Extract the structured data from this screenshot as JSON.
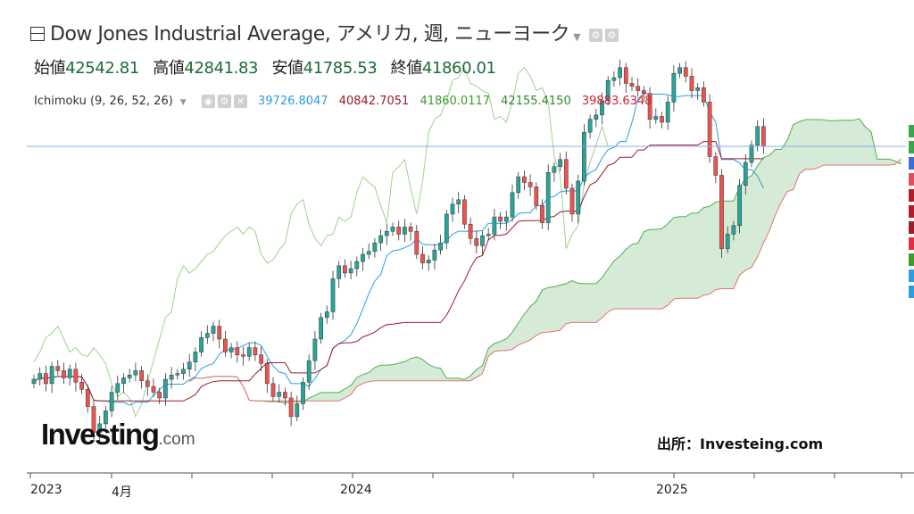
{
  "header": {
    "title": "Dow Jones Industrial Average, アメリカ, 週, ニューヨーク",
    "ohlc": [
      {
        "label": "始値",
        "value": "42542.81"
      },
      {
        "label": "高値",
        "value": "42841.83"
      },
      {
        "label": "安値",
        "value": "41785.53"
      },
      {
        "label": "終値",
        "value": "41860.01"
      }
    ]
  },
  "indicator": {
    "name": "Ichimoku (9, 26, 52, 26)",
    "values": [
      {
        "text": "39726.8047",
        "color": "#2b9de0"
      },
      {
        "text": "40842.7051",
        "color": "#9b1c2a"
      },
      {
        "text": "41860.0117",
        "color": "#3f9c2c"
      },
      {
        "text": "42155.4150",
        "color": "#2e8b2e"
      },
      {
        "text": "39883.6348",
        "color": "#d2222d"
      }
    ]
  },
  "logo": {
    "main": "Investing",
    "suffix": ".com"
  },
  "source_note": "出所：Investeing.com",
  "x_ticks": [
    {
      "label": "2023",
      "week": 0
    },
    {
      "label": "4月",
      "week": 13
    },
    {
      "label": "2024",
      "week": 52
    },
    {
      "label": "2025",
      "week": 104
    }
  ],
  "colors": {
    "up": "#26a69a",
    "down": "#ef5350",
    "tenkan": "#2b9de0",
    "kijun": "#9b1c2a",
    "chikou": "#3f9c2c",
    "span_a": "#4caf50",
    "span_b": "#e57373",
    "cloud_bull": "#cfe8cf",
    "cloud_bear": "#f8d0d0",
    "last_price_line": "#8aa9e8"
  },
  "chart_data": {
    "type": "candlestick",
    "title": "Dow Jones Industrial Average",
    "period": "weekly",
    "ylim": [
      30800,
      45400
    ],
    "price_closes": [
      33750,
      33950,
      33600,
      34200,
      34050,
      33800,
      34100,
      33650,
      33400,
      32800,
      31900,
      32200,
      32650,
      33300,
      33600,
      33800,
      33900,
      34050,
      33700,
      33500,
      33300,
      33100,
      33750,
      33900,
      33950,
      34100,
      34350,
      34700,
      35200,
      35350,
      35600,
      35150,
      34700,
      34850,
      34600,
      34550,
      34850,
      34600,
      34300,
      33600,
      33150,
      33300,
      33100,
      32450,
      32900,
      33650,
      34400,
      35150,
      35900,
      36100,
      37250,
      37700,
      37450,
      37600,
      37850,
      38100,
      38200,
      38500,
      38750,
      38900,
      39050,
      38800,
      39050,
      38900,
      38100,
      37800,
      37900,
      38250,
      38500,
      39500,
      39850,
      40000,
      39150,
      38650,
      38400,
      38750,
      38800,
      39400,
      39250,
      39400,
      40250,
      40800,
      40600,
      40450,
      39800,
      39200,
      40950,
      41150,
      41400,
      40400,
      39500,
      40650,
      42350,
      42800,
      42950,
      43450,
      44150,
      44250,
      44600,
      44050,
      43950,
      43800,
      43700,
      42800,
      42900,
      42700,
      43400,
      44400,
      44600,
      44300,
      43800,
      43900,
      43400,
      41500,
      40850,
      38300,
      38800,
      39100,
      40500,
      41300,
      41900,
      42550,
      41860
    ],
    "series": [
      {
        "name": "Ichimoku (9, 26, 52, 26)",
        "values": [
          39726.8047,
          40842.7051,
          41860.0117,
          42155.415,
          39883.6348
        ]
      }
    ],
    "last_close": 41860.01
  }
}
